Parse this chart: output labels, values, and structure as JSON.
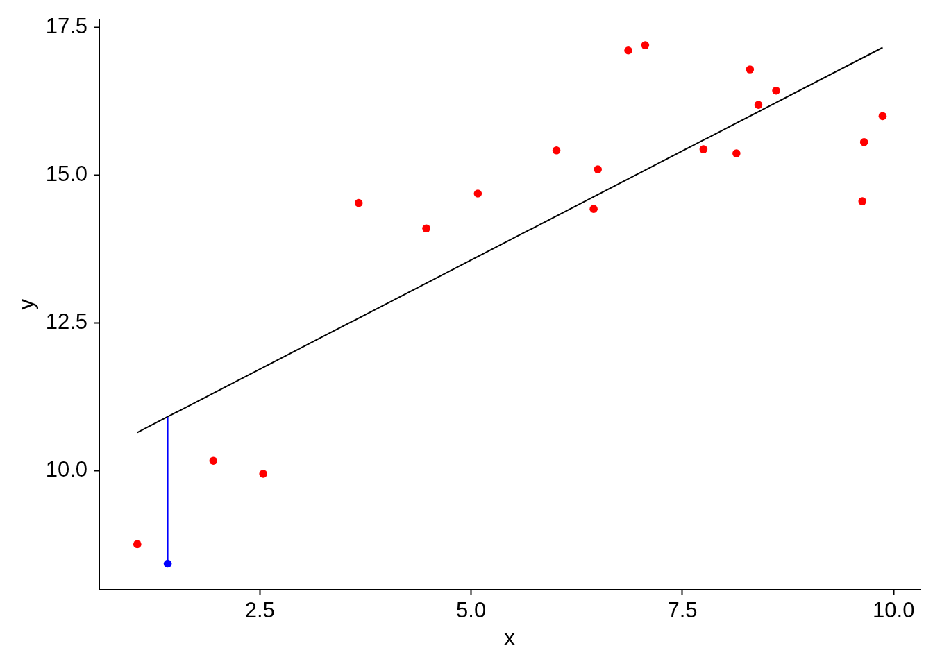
{
  "chart_data": {
    "type": "scatter",
    "xlabel": "x",
    "ylabel": "y",
    "xlim": [
      0.6,
      10.31
    ],
    "ylim": [
      7.99,
      17.64
    ],
    "xticks": [
      2.5,
      {
        "value": 5,
        "label": "5.0"
      },
      7.5,
      {
        "value": 10,
        "label": "10.0"
      }
    ],
    "yticks": [
      {
        "value": 10,
        "label": "10.0"
      },
      12.5,
      {
        "value": 15,
        "label": "15.0"
      },
      17.5
    ],
    "grid": false,
    "legend": false,
    "marker": "circle",
    "series": [
      {
        "type": "scatter",
        "color": "#ff0000",
        "x": [
          1.05,
          1.95,
          2.54,
          3.67,
          4.47,
          5.08,
          6.01,
          6.45,
          6.5,
          6.86,
          7.06,
          7.75,
          8.14,
          8.3,
          8.4,
          8.61,
          9.63,
          9.65,
          9.87
        ],
        "values": [
          8.76,
          10.17,
          9.95,
          14.53,
          14.1,
          14.69,
          15.42,
          14.43,
          15.1,
          17.11,
          17.2,
          15.44,
          15.37,
          16.79,
          16.19,
          16.43,
          14.56,
          15.56,
          16
        ]
      },
      {
        "type": "line",
        "color": "#000000",
        "marker": "none",
        "x": [
          1.05,
          9.87
        ],
        "values": [
          10.65,
          17.16
        ]
      },
      {
        "type": "line",
        "color": "#0000ff",
        "marker": "none",
        "x": [
          1.41,
          1.41
        ],
        "values": [
          8.43,
          10.91
        ]
      },
      {
        "type": "scatter",
        "color": "#0000ff",
        "x": [
          1.41
        ],
        "values": [
          8.43
        ]
      }
    ]
  }
}
